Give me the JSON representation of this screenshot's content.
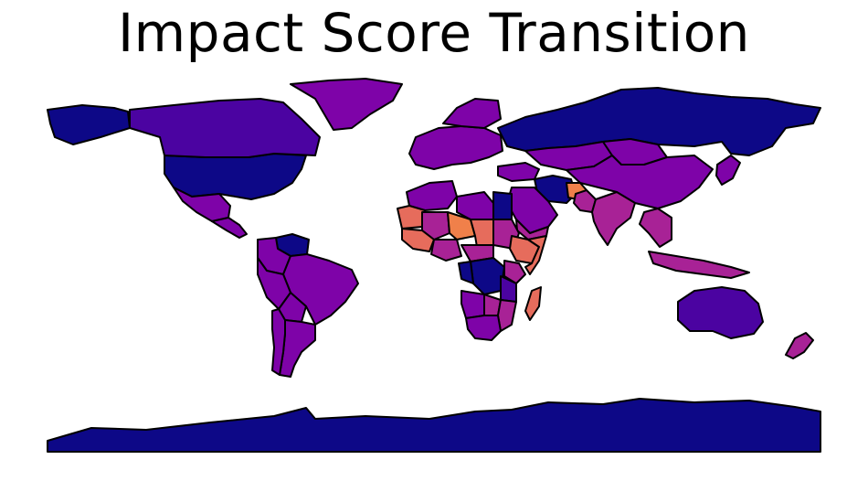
{
  "title": "Impact Score Transition",
  "map": {
    "projection": "plate-carree",
    "colormap": "plasma",
    "palette": {
      "low": "#0d0887",
      "low_mid": "#4b03a1",
      "mid_low": "#7e03a8",
      "mid": "#a82296",
      "mid_high": "#cc4778",
      "high": "#e66c5c",
      "peak": "#f0804a"
    },
    "regions": [
      {
        "name": "Antarctica",
        "level": "low"
      },
      {
        "name": "Russia",
        "level": "low"
      },
      {
        "name": "United States",
        "level": "low"
      },
      {
        "name": "Alaska",
        "level": "low"
      },
      {
        "name": "Canada",
        "level": "low_mid"
      },
      {
        "name": "Greenland",
        "level": "mid_low"
      },
      {
        "name": "Mexico",
        "level": "mid_low"
      },
      {
        "name": "Central America",
        "level": "mid_low"
      },
      {
        "name": "Venezuela",
        "level": "low"
      },
      {
        "name": "Colombia",
        "level": "mid_low"
      },
      {
        "name": "Brazil",
        "level": "mid_low"
      },
      {
        "name": "Peru",
        "level": "mid_low"
      },
      {
        "name": "Bolivia",
        "level": "mid_low"
      },
      {
        "name": "Argentina",
        "level": "mid_low"
      },
      {
        "name": "Chile",
        "level": "mid_low"
      },
      {
        "name": "Europe",
        "level": "mid_low"
      },
      {
        "name": "Scandinavia",
        "level": "mid_low"
      },
      {
        "name": "Kazakhstan",
        "level": "mid_low"
      },
      {
        "name": "Mongolia",
        "level": "mid_low"
      },
      {
        "name": "China",
        "level": "mid_low"
      },
      {
        "name": "Turkey",
        "level": "mid_low"
      },
      {
        "name": "Iran",
        "level": "low"
      },
      {
        "name": "Afghanistan",
        "level": "peak"
      },
      {
        "name": "Pakistan",
        "level": "mid"
      },
      {
        "name": "India",
        "level": "mid"
      },
      {
        "name": "Arabia",
        "level": "mid_low"
      },
      {
        "name": "Yemen",
        "level": "mid"
      },
      {
        "name": "Southeast Asia",
        "level": "mid"
      },
      {
        "name": "Indonesia",
        "level": "mid"
      },
      {
        "name": "Japan",
        "level": "mid_low"
      },
      {
        "name": "Australia",
        "level": "low_mid"
      },
      {
        "name": "New Zealand",
        "level": "mid"
      },
      {
        "name": "Maghreb",
        "level": "mid_low"
      },
      {
        "name": "Libya",
        "level": "mid_low"
      },
      {
        "name": "Egypt",
        "level": "low"
      },
      {
        "name": "Mauritania",
        "level": "high"
      },
      {
        "name": "Mali",
        "level": "mid"
      },
      {
        "name": "Niger",
        "level": "peak"
      },
      {
        "name": "Chad",
        "level": "high"
      },
      {
        "name": "Sudan",
        "level": "mid"
      },
      {
        "name": "Ethiopia",
        "level": "high"
      },
      {
        "name": "West Africa",
        "level": "high"
      },
      {
        "name": "Nigeria",
        "level": "mid"
      },
      {
        "name": "Central African Republic",
        "level": "mid"
      },
      {
        "name": "Somalia",
        "level": "high"
      },
      {
        "name": "DR Congo",
        "level": "low"
      },
      {
        "name": "Congo",
        "level": "low"
      },
      {
        "name": "Kenya",
        "level": "mid"
      },
      {
        "name": "Tanzania",
        "level": "low_mid"
      },
      {
        "name": "Angola",
        "level": "mid_low"
      },
      {
        "name": "Zambia",
        "level": "mid"
      },
      {
        "name": "Mozambique",
        "level": "mid"
      },
      {
        "name": "Southern Africa",
        "level": "mid_low"
      },
      {
        "name": "Madagascar",
        "level": "high"
      }
    ]
  }
}
